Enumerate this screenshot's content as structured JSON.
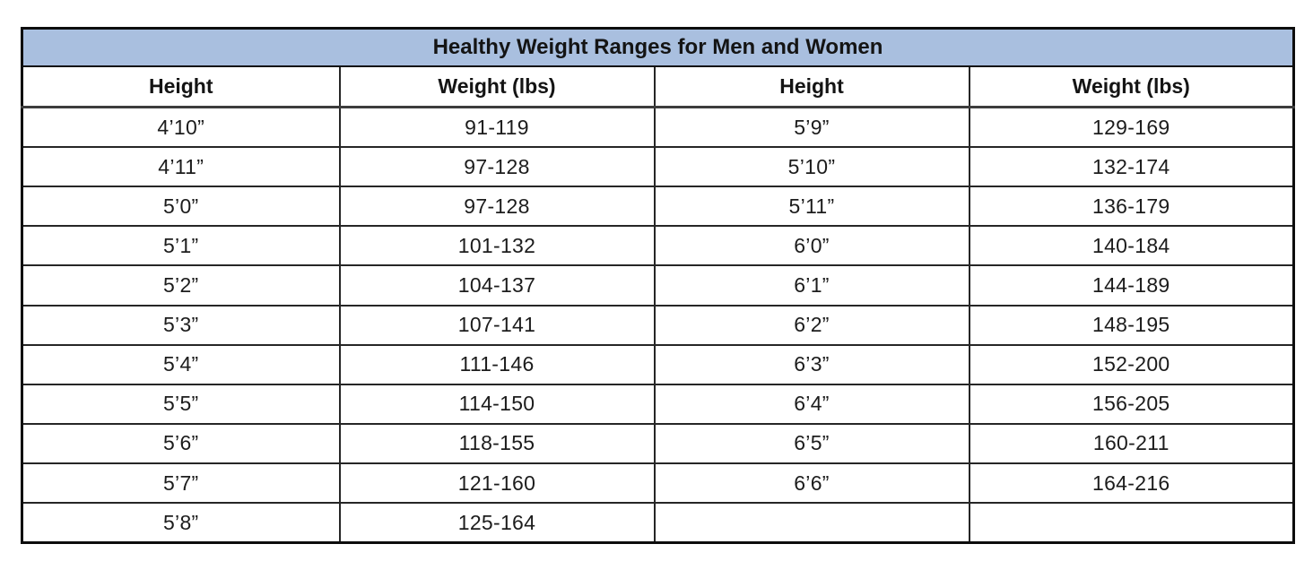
{
  "chart_data": {
    "type": "table",
    "title": "Healthy Weight Ranges for Men and Women",
    "columns": [
      "Height",
      "Weight (lbs)",
      "Height",
      "Weight (lbs)"
    ],
    "rows": [
      [
        "4’10”",
        "91-119",
        "5’9”",
        "129-169"
      ],
      [
        "4’11”",
        "97-128",
        "5’10”",
        "132-174"
      ],
      [
        "5’0”",
        "97-128",
        "5’11”",
        "136-179"
      ],
      [
        "5’1”",
        "101-132",
        "6’0”",
        "140-184"
      ],
      [
        "5’2”",
        "104-137",
        "6’1”",
        "144-189"
      ],
      [
        "5’3”",
        "107-141",
        "6’2”",
        "148-195"
      ],
      [
        "5’4”",
        "111-146",
        "6’3”",
        "152-200"
      ],
      [
        "5’5”",
        "114-150",
        "6’4”",
        "156-205"
      ],
      [
        "5’6”",
        "118-155",
        "6’5”",
        "160-211"
      ],
      [
        "5’7”",
        "121-160",
        "6’6”",
        "164-216"
      ],
      [
        "5’8”",
        "125-164",
        "",
        ""
      ]
    ]
  },
  "colors": {
    "title_background": "#a9bfdf",
    "border": "#262626",
    "outer_border": "#0d0d0d",
    "text": "#1c1c1c"
  }
}
